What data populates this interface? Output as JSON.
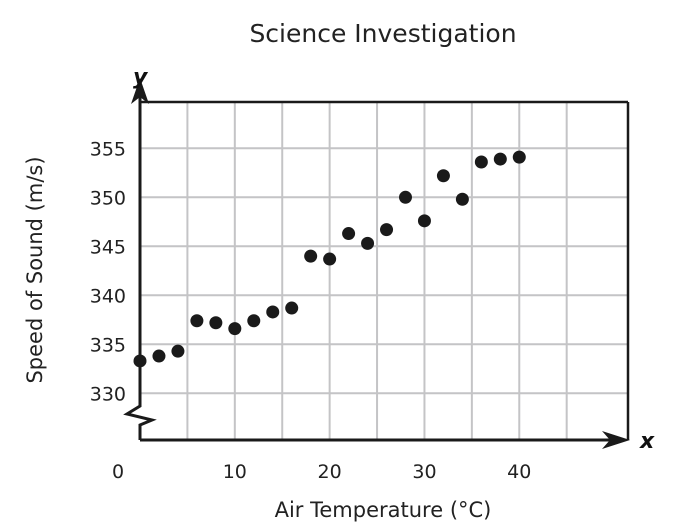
{
  "chart_data": {
    "type": "scatter",
    "title": "Science Investigation",
    "xlabel": "Air Temperature (°C)",
    "ylabel": "Speed of Sound (m/s)",
    "x_axis_var": "x",
    "y_axis_var": "y",
    "xlim": [
      0,
      50
    ],
    "ylim": [
      330,
      359.7
    ],
    "y_axis_break": true,
    "grid": true,
    "x_grid_step": 5,
    "y_grid_step": 5,
    "x_ticks": [
      0,
      10,
      20,
      30,
      40
    ],
    "x_tick_labels": [
      "0",
      "10",
      "20",
      "30",
      "40"
    ],
    "y_ticks": [
      330,
      335,
      340,
      345,
      350,
      355
    ],
    "y_tick_labels": [
      "330",
      "335",
      "340",
      "345",
      "350",
      "355"
    ],
    "points": [
      {
        "x": 0,
        "y": 333.3
      },
      {
        "x": 2,
        "y": 333.8
      },
      {
        "x": 4,
        "y": 334.3
      },
      {
        "x": 6,
        "y": 337.4
      },
      {
        "x": 8,
        "y": 337.2
      },
      {
        "x": 10,
        "y": 336.6
      },
      {
        "x": 12,
        "y": 337.4
      },
      {
        "x": 14,
        "y": 338.3
      },
      {
        "x": 16,
        "y": 338.7
      },
      {
        "x": 18,
        "y": 344.0
      },
      {
        "x": 20,
        "y": 343.7
      },
      {
        "x": 22,
        "y": 346.3
      },
      {
        "x": 24,
        "y": 345.3
      },
      {
        "x": 26,
        "y": 346.7
      },
      {
        "x": 28,
        "y": 350.0
      },
      {
        "x": 30,
        "y": 347.6
      },
      {
        "x": 32,
        "y": 352.2
      },
      {
        "x": 34,
        "y": 349.8
      },
      {
        "x": 36,
        "y": 353.6
      },
      {
        "x": 38,
        "y": 353.9
      },
      {
        "x": 40,
        "y": 354.1
      }
    ],
    "colors": {
      "point": "#1a1a1a",
      "grid": "#c4c4c6",
      "axis": "#1a1a1a"
    }
  }
}
